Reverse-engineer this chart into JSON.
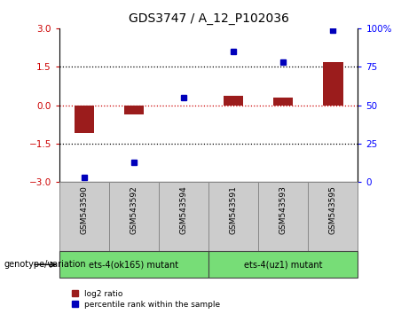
{
  "title": "GDS3747 / A_12_P102036",
  "samples": [
    "GSM543590",
    "GSM543592",
    "GSM543594",
    "GSM543591",
    "GSM543593",
    "GSM543595"
  ],
  "log2_ratio": [
    -1.1,
    -0.35,
    -0.03,
    0.35,
    0.28,
    1.68
  ],
  "percentile_rank": [
    3,
    13,
    55,
    85,
    78,
    99
  ],
  "bar_color": "#9b1c1c",
  "dot_color": "#0000bb",
  "ylim_left": [
    -3,
    3
  ],
  "ylim_right": [
    0,
    100
  ],
  "yticks_left": [
    -3,
    -1.5,
    0,
    1.5,
    3
  ],
  "yticks_right": [
    0,
    25,
    50,
    75,
    100
  ],
  "hlines": [
    1.5,
    -1.5
  ],
  "hline_zero_color": "#cc0000",
  "group1_label": "ets-4(ok165) mutant",
  "group2_label": "ets-4(uz1) mutant",
  "group_color": "#77dd77",
  "sample_box_color": "#cccccc",
  "background_color": "#ffffff",
  "genotype_label": "genotype/variation",
  "legend_label1": "log2 ratio",
  "legend_label2": "percentile rank within the sample"
}
